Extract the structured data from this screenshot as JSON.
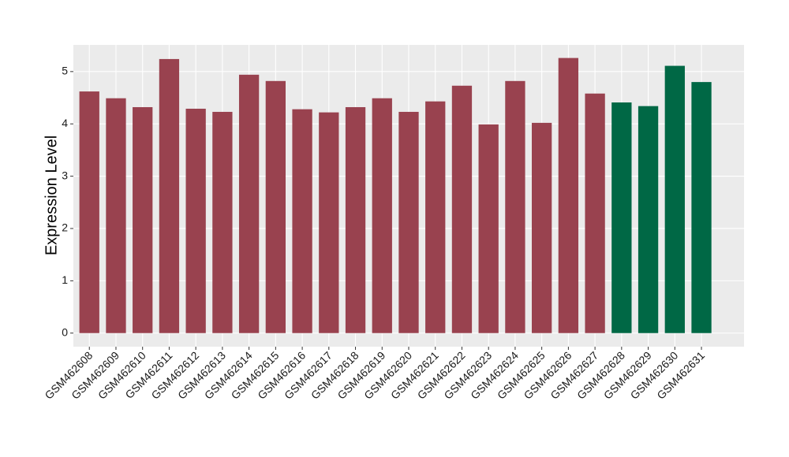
{
  "chart_data": {
    "type": "bar",
    "y_label": "Expression Level",
    "categories": [
      "GSM462608",
      "GSM462609",
      "GSM462610",
      "GSM462611",
      "GSM462612",
      "GSM462613",
      "GSM462614",
      "GSM462615",
      "GSM462616",
      "GSM462617",
      "GSM462618",
      "GSM462619",
      "GSM462620",
      "GSM462621",
      "GSM462622",
      "GSM462623",
      "GSM462624",
      "GSM462625",
      "GSM462626",
      "GSM462627",
      "GSM462628",
      "GSM462629",
      "GSM462630",
      "GSM462631"
    ],
    "values": [
      4.62,
      4.49,
      4.32,
      5.24,
      4.29,
      4.23,
      4.94,
      4.82,
      4.28,
      4.22,
      4.32,
      4.49,
      4.23,
      4.43,
      4.73,
      3.99,
      4.82,
      4.02,
      5.26,
      4.58,
      4.41,
      4.34,
      5.11,
      4.8
    ],
    "colors": [
      "#99424f",
      "#99424f",
      "#99424f",
      "#99424f",
      "#99424f",
      "#99424f",
      "#99424f",
      "#99424f",
      "#99424f",
      "#99424f",
      "#99424f",
      "#99424f",
      "#99424f",
      "#99424f",
      "#99424f",
      "#99424f",
      "#99424f",
      "#99424f",
      "#99424f",
      "#99424f",
      "#006845",
      "#006845",
      "#006845",
      "#006845"
    ],
    "ylim": [
      -0.26,
      5.51
    ],
    "yticks": [
      0,
      1,
      2,
      3,
      4,
      5
    ],
    "grid": true
  }
}
